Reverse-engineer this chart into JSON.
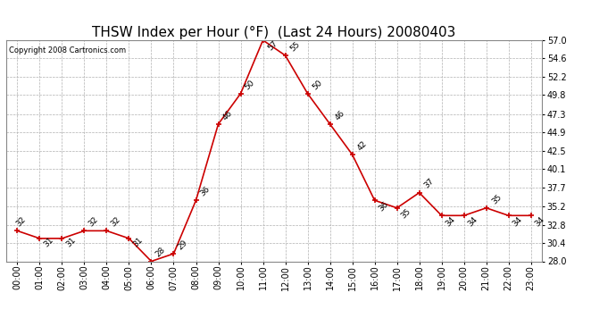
{
  "title": "THSW Index per Hour (°F)  (Last 24 Hours) 20080403",
  "copyright": "Copyright 2008 Cartronics.com",
  "hours": [
    "00:00",
    "01:00",
    "02:00",
    "03:00",
    "04:00",
    "05:00",
    "06:00",
    "07:00",
    "08:00",
    "09:00",
    "10:00",
    "11:00",
    "12:00",
    "13:00",
    "14:00",
    "15:00",
    "16:00",
    "17:00",
    "18:00",
    "19:00",
    "20:00",
    "21:00",
    "22:00",
    "23:00"
  ],
  "values": [
    32,
    31,
    31,
    32,
    32,
    31,
    28,
    29,
    36,
    46,
    50,
    57,
    55,
    50,
    46,
    42,
    36,
    35,
    37,
    34,
    34,
    35,
    34,
    34
  ],
  "ylim": [
    28.0,
    57.0
  ],
  "yticks": [
    28.0,
    30.4,
    32.8,
    35.2,
    37.7,
    40.1,
    42.5,
    44.9,
    47.3,
    49.8,
    52.2,
    54.6,
    57.0
  ],
  "line_color": "#cc0000",
  "marker_color": "#cc0000",
  "bg_color": "#ffffff",
  "grid_color": "#b0b0b0",
  "title_fontsize": 11,
  "tick_fontsize": 7,
  "annotation_fontsize": 6.5,
  "copyright_fontsize": 6
}
